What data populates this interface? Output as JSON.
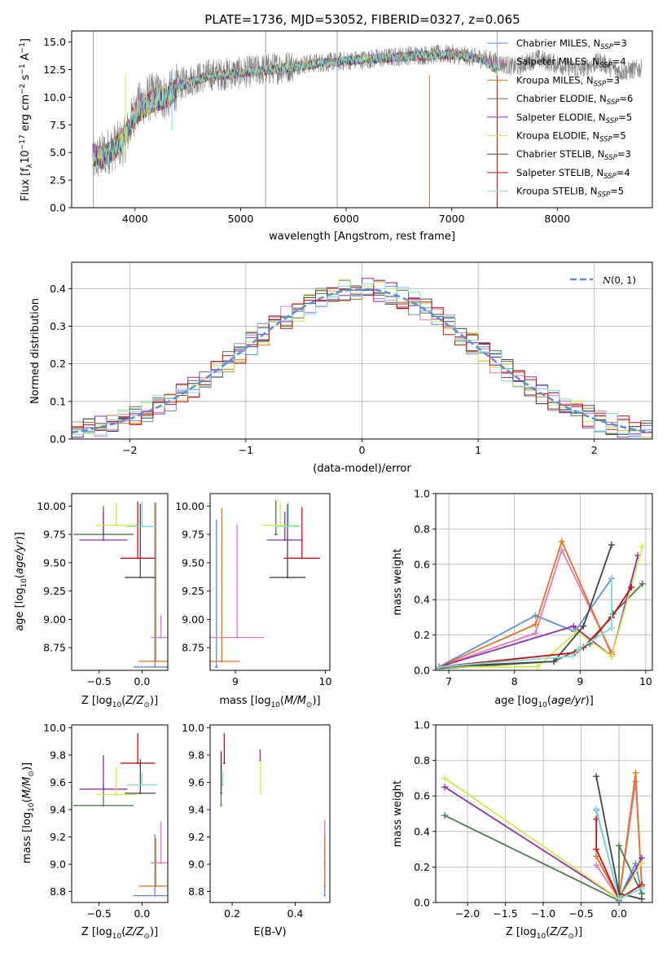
{
  "figure": {
    "title": "PLATE=1736, MJD=53052, FIBERID=0327, z=0.065"
  },
  "models": [
    {
      "name": "Chabrier MILES, N_SSP=3",
      "label_main": "Chabrier MILES, N",
      "label_sub": "SSP",
      "label_end": "=3",
      "color": "#5f8fd6"
    },
    {
      "name": "Salpeter MILES, N_SSP=4",
      "label_main": "Salpeter MILES, N",
      "label_sub": "SSP",
      "label_end": "=4",
      "color": "#e377c2"
    },
    {
      "name": "Kroupa MILES, N_SSP=3",
      "label_main": "Kroupa MILES, N",
      "label_sub": "SSP",
      "label_end": "=3",
      "color": "#e0751f"
    },
    {
      "name": "Chabrier ELODIE, N_SSP=6",
      "label_main": "Chabrier ELODIE, N",
      "label_sub": "SSP",
      "label_end": "=6",
      "color": "#4f7a4f"
    },
    {
      "name": "Salpeter ELODIE, N_SSP=5",
      "label_main": "Salpeter ELODIE, N",
      "label_sub": "SSP",
      "label_end": "=5",
      "color": "#9030b0"
    },
    {
      "name": "Kroupa ELODIE, N_SSP=5",
      "label_main": "Kroupa ELODIE, N",
      "label_sub": "SSP",
      "label_end": "=5",
      "color": "#d4e84a"
    },
    {
      "name": "Chabrier STELIB, N_SSP=3",
      "label_main": "Chabrier STELIB, N",
      "label_sub": "SSP",
      "label_end": "=3",
      "color": "#454545"
    },
    {
      "name": "Salpeter STELIB, N_SSP=4",
      "label_main": "Salpeter STELIB, N",
      "label_sub": "SSP",
      "label_end": "=4",
      "color": "#c41010"
    },
    {
      "name": "Kroupa STELIB, N_SSP=5",
      "label_main": "Kroupa STELIB, N",
      "label_sub": "SSP",
      "label_end": "=5",
      "color": "#80dbe3"
    }
  ],
  "chart_data": [
    {
      "id": "spectrum",
      "type": "line",
      "xlabel": "wavelength [Angstrom, rest frame]",
      "ylabel": "Flux [f_λ 10^-17 erg cm^-2 s^-1 A^-1]",
      "ylabel_parts": [
        "Flux [f",
        "λ",
        "10",
        "−17",
        " erg cm",
        "−2",
        " s",
        "−1",
        " A",
        "−1",
        "]"
      ],
      "xlim": [
        3400,
        8900
      ],
      "ylim": [
        0,
        16
      ],
      "xticks": [
        "4000",
        "5000",
        "6000",
        "7000",
        "8000"
      ],
      "xtick_values": [
        4000,
        5000,
        6000,
        7000,
        8000
      ],
      "yticks": [
        "0.0",
        "2.5",
        "5.0",
        "7.5",
        "10.0",
        "12.5",
        "15.0"
      ],
      "ytick_values": [
        0,
        2.5,
        5,
        7.5,
        10,
        12.5,
        15
      ],
      "data_color": "#808080",
      "data_continuum": {
        "wavelength": [
          3600,
          3700,
          3800,
          3900,
          4000,
          4100,
          4200,
          4300,
          4400,
          4500,
          4700,
          5000,
          5300,
          5600,
          6000,
          6300,
          6600,
          7000,
          7300,
          7600,
          7800,
          8000,
          8200,
          8400,
          8600,
          8800
        ],
        "flux": [
          4.2,
          4.8,
          5.5,
          6.0,
          8.8,
          9.8,
          10.2,
          10.0,
          11.0,
          11.5,
          12.0,
          12.2,
          12.6,
          13.0,
          13.3,
          13.5,
          13.8,
          13.9,
          13.5,
          12.7,
          13.5,
          13.0,
          12.5,
          13.2,
          12.3,
          12.6
        ]
      },
      "sky_spikes": [
        {
          "wavelength": 3605,
          "flux": 16
        },
        {
          "wavelength": 5237,
          "flux": 16
        },
        {
          "wavelength": 5915,
          "flux": 16
        },
        {
          "wavelength": 7430,
          "flux": 16
        }
      ],
      "model_continuum": {
        "wavelength": [
          3600,
          3700,
          3800,
          3900,
          4000,
          4100,
          4200,
          4300,
          4400,
          4500,
          4700,
          5000,
          5300,
          5600,
          6000,
          6300,
          6600,
          7000,
          7300,
          7430
        ],
        "flux": [
          4.8,
          4.5,
          5.3,
          6.2,
          8.5,
          9.2,
          9.8,
          10.0,
          10.8,
          11.3,
          11.9,
          12.2,
          12.5,
          12.9,
          13.3,
          13.5,
          13.7,
          13.9,
          13.4,
          12.5
        ]
      },
      "model_end_wavelength": 7430
    },
    {
      "id": "residual-distribution",
      "type": "line",
      "xlabel": "(data-model)/error",
      "ylabel": "Normed distribution",
      "xlim": [
        -2.5,
        2.5
      ],
      "ylim": [
        0,
        0.47
      ],
      "xticks": [
        "−2",
        "−1",
        "0",
        "1",
        "2"
      ],
      "xtick_values": [
        -2,
        -1,
        0,
        1,
        2
      ],
      "yticks": [
        "0.0",
        "0.1",
        "0.2",
        "0.3",
        "0.4"
      ],
      "ytick_values": [
        0,
        0.1,
        0.2,
        0.3,
        0.4
      ],
      "legend": "N(0,1)",
      "legend_placement": "top-right",
      "gaussian": {
        "mean": 0,
        "sigma": 1,
        "color": "#5f8fd6",
        "style": "dashed"
      },
      "bin_width": 0.1,
      "bin_start": -2.5,
      "hist_spread": 0.03
    },
    {
      "id": "age-vs-z",
      "type": "scatter",
      "xlabel": "Z [log10(Z/Z⊙)]",
      "ylabel": "age [log10(age/yr)]",
      "xlim": [
        -0.82,
        0.3
      ],
      "ylim": [
        8.55,
        10.11
      ],
      "xticks": [
        "−0.5",
        "0.0"
      ],
      "xtick_values": [
        -0.5,
        0
      ],
      "yticks": [
        "8.75",
        "9.00",
        "9.25",
        "9.50",
        "9.75",
        "10.00"
      ],
      "ytick_values": [
        8.75,
        9.0,
        9.25,
        9.5,
        9.75,
        10.0
      ],
      "points": [
        {
          "model": 0,
          "x": 0.15,
          "y": 8.58,
          "xerr": 0.25,
          "yerr": 1.45
        },
        {
          "model": 1,
          "x": 0.22,
          "y": 8.84,
          "xerr": 0.12,
          "yerr": 0.2
        },
        {
          "model": 2,
          "x": 0.16,
          "y": 8.63,
          "xerr": 0.2,
          "yerr": 1.4
        },
        {
          "model": 3,
          "x": -0.45,
          "y": 9.75,
          "xerr": 0.35,
          "yerr": 0.25
        },
        {
          "model": 4,
          "x": -0.45,
          "y": 9.7,
          "xerr": 0.28,
          "yerr": 0.25
        },
        {
          "model": 5,
          "x": -0.3,
          "y": 9.83,
          "xerr": 0.24,
          "yerr": 0.2
        },
        {
          "model": 6,
          "x": -0.02,
          "y": 9.37,
          "xerr": 0.18,
          "yerr": 0.65
        },
        {
          "model": 7,
          "x": -0.05,
          "y": 9.54,
          "xerr": 0.2,
          "yerr": 0.5
        },
        {
          "model": 8,
          "x": 0.0,
          "y": 9.82,
          "xerr": 0.18,
          "yerr": 0.22
        }
      ]
    },
    {
      "id": "age-vs-mass",
      "type": "scatter",
      "xlabel": "mass [log10(M/M⊙)]",
      "ylabel": "",
      "xlim": [
        8.72,
        10.05
      ],
      "ylim": [
        8.55,
        10.11
      ],
      "xticks": [
        "9",
        "10"
      ],
      "xtick_values": [
        9,
        10
      ],
      "yticks": [
        "8.75",
        "9.00",
        "9.25",
        "9.50",
        "9.75",
        "10.00"
      ],
      "ytick_values": [
        8.75,
        9.0,
        9.25,
        9.5,
        9.75,
        10.0
      ],
      "points": [
        {
          "model": 0,
          "x": 8.79,
          "y": 8.58,
          "xerr": 0.02,
          "yerr": 1.3
        },
        {
          "model": 1,
          "x": 9.02,
          "y": 8.84,
          "xerr": 0.3,
          "yerr": 1.0
        },
        {
          "model": 2,
          "x": 8.85,
          "y": 8.63,
          "xerr": 0.2,
          "yerr": 1.35
        },
        {
          "model": 3,
          "x": 9.45,
          "y": 9.75,
          "xerr": 0.02,
          "yerr": 0.3
        },
        {
          "model": 4,
          "x": 9.55,
          "y": 9.7,
          "xerr": 0.2,
          "yerr": 0.25
        },
        {
          "model": 5,
          "x": 9.5,
          "y": 9.83,
          "xerr": 0.2,
          "yerr": 0.2
        },
        {
          "model": 6,
          "x": 9.58,
          "y": 9.37,
          "xerr": 0.2,
          "yerr": 0.65
        },
        {
          "model": 7,
          "x": 9.74,
          "y": 9.54,
          "xerr": 0.2,
          "yerr": 0.45
        },
        {
          "model": 8,
          "x": 9.59,
          "y": 9.82,
          "xerr": 0.15,
          "yerr": 0.22
        }
      ]
    },
    {
      "id": "mass-weight-vs-age",
      "type": "line",
      "xlabel": "age [log10(age/yr)]",
      "ylabel": "mass weight",
      "xlim": [
        6.8,
        10.1
      ],
      "ylim": [
        0,
        1
      ],
      "xticks": [
        "7",
        "8",
        "9",
        "10"
      ],
      "xtick_values": [
        7,
        8,
        9,
        10
      ],
      "yticks": [
        "0.0",
        "0.2",
        "0.4",
        "0.6",
        "0.8",
        "1.0"
      ],
      "ytick_values": [
        0,
        0.2,
        0.4,
        0.6,
        0.8,
        1.0
      ],
      "series": [
        {
          "model": 0,
          "x": [
            6.85,
            8.32,
            8.92,
            9.48
          ],
          "y": [
            0.02,
            0.31,
            0.22,
            0.52
          ]
        },
        {
          "model": 1,
          "x": [
            6.85,
            8.32,
            8.72,
            9.48
          ],
          "y": [
            0.02,
            0.21,
            0.68,
            0.1
          ]
        },
        {
          "model": 2,
          "x": [
            6.85,
            8.32,
            8.72,
            9.48
          ],
          "y": [
            0.02,
            0.26,
            0.73,
            0.09
          ]
        },
        {
          "model": 3,
          "x": [
            6.85,
            8.6,
            9.15,
            9.5,
            9.95
          ],
          "y": [
            0.01,
            0.05,
            0.15,
            0.32,
            0.49
          ]
        },
        {
          "model": 4,
          "x": [
            6.85,
            8.9,
            9.48,
            9.88
          ],
          "y": [
            0.02,
            0.25,
            0.08,
            0.65
          ]
        },
        {
          "model": 5,
          "x": [
            6.85,
            8.35,
            8.95,
            9.48,
            9.95
          ],
          "y": [
            0.02,
            0.02,
            0.22,
            0.08,
            0.7
          ]
        },
        {
          "model": 6,
          "x": [
            6.85,
            8.6,
            9.05,
            9.48
          ],
          "y": [
            0.02,
            0.05,
            0.25,
            0.71
          ]
        },
        {
          "model": 7,
          "x": [
            6.85,
            8.92,
            9.05,
            9.48,
            9.78
          ],
          "y": [
            0.02,
            0.1,
            0.13,
            0.3,
            0.47
          ]
        },
        {
          "model": 8,
          "x": [
            6.85,
            8.88,
            8.98,
            9.48
          ],
          "y": [
            0.02,
            0.08,
            0.12,
            0.24
          ]
        }
      ],
      "vertical_errors": [
        {
          "model": 8,
          "x": 9.48,
          "y0": 0.24,
          "y1": 0.53
        }
      ]
    },
    {
      "id": "mass-vs-z",
      "type": "scatter",
      "xlabel": "Z [log10(Z/Z⊙)]",
      "ylabel": "mass [log10(M/M⊙)]",
      "xlim": [
        -0.82,
        0.3
      ],
      "ylim": [
        8.72,
        10.02
      ],
      "xticks": [
        "−0.5",
        "0.0"
      ],
      "xtick_values": [
        -0.5,
        0
      ],
      "yticks": [
        "8.8",
        "9.0",
        "9.2",
        "9.4",
        "9.6",
        "9.8",
        "10.0"
      ],
      "ytick_values": [
        8.8,
        9.0,
        9.2,
        9.4,
        9.6,
        9.8,
        10.0
      ],
      "points": [
        {
          "model": 0,
          "x": 0.15,
          "y": 8.77,
          "xerr": 0.25,
          "yerr": 0.45
        },
        {
          "model": 1,
          "x": 0.22,
          "y": 9.01,
          "xerr": 0.12,
          "yerr": 0.3
        },
        {
          "model": 2,
          "x": 0.16,
          "y": 8.84,
          "xerr": 0.2,
          "yerr": 0.35
        },
        {
          "model": 3,
          "x": -0.45,
          "y": 9.43,
          "xerr": 0.35,
          "yerr": 0.15
        },
        {
          "model": 4,
          "x": -0.45,
          "y": 9.55,
          "xerr": 0.28,
          "yerr": 0.25
        },
        {
          "model": 5,
          "x": -0.3,
          "y": 9.51,
          "xerr": 0.24,
          "yerr": 0.2
        },
        {
          "model": 6,
          "x": -0.02,
          "y": 9.52,
          "xerr": 0.18,
          "yerr": 0.25
        },
        {
          "model": 7,
          "x": -0.05,
          "y": 9.74,
          "xerr": 0.2,
          "yerr": 0.22
        },
        {
          "model": 8,
          "x": 0.0,
          "y": 9.58,
          "xerr": 0.18,
          "yerr": 0.1
        }
      ]
    },
    {
      "id": "mass-vs-ebv",
      "type": "scatter",
      "xlabel": "E(B-V)",
      "ylabel": "",
      "xlim": [
        0.13,
        0.51
      ],
      "ylim": [
        8.72,
        10.02
      ],
      "xticks": [
        "0.2",
        "0.4"
      ],
      "xtick_values": [
        0.2,
        0.4
      ],
      "yticks": [
        "8.8",
        "9.0",
        "9.2",
        "9.4",
        "9.6",
        "9.8",
        "10.0"
      ],
      "ytick_values": [
        8.8,
        9.0,
        9.2,
        9.4,
        9.6,
        9.8,
        10.0
      ],
      "points": [
        {
          "model": 0,
          "x": 0.494,
          "y": 8.77,
          "yerr": 0.45
        },
        {
          "model": 1,
          "x": 0.494,
          "y": 9.01,
          "yerr": 0.32
        },
        {
          "model": 2,
          "x": 0.494,
          "y": 8.84,
          "yerr": 0.37
        },
        {
          "model": 3,
          "x": 0.165,
          "y": 9.43,
          "yerr": 0.4
        },
        {
          "model": 4,
          "x": 0.289,
          "y": 9.76,
          "yerr": 0.08
        },
        {
          "model": 5,
          "x": 0.29,
          "y": 9.51,
          "yerr": 0.25
        },
        {
          "model": 6,
          "x": 0.165,
          "y": 9.52,
          "yerr": 0.3
        },
        {
          "model": 7,
          "x": 0.175,
          "y": 9.74,
          "yerr": 0.22
        },
        {
          "model": 8,
          "x": 0.17,
          "y": 9.58,
          "yerr": 0.1
        }
      ]
    },
    {
      "id": "mass-weight-vs-z",
      "type": "line",
      "xlabel": "Z [log10(Z/Z⊙)]",
      "ylabel": "mass weight",
      "xlim": [
        -2.42,
        0.44
      ],
      "ylim": [
        0,
        1
      ],
      "xticks": [
        "−2.0",
        "−1.5",
        "−1.0",
        "−0.5",
        "0.0"
      ],
      "xtick_values": [
        -2.0,
        -1.5,
        -1.0,
        -0.5,
        0.0
      ],
      "yticks": [
        "0.0",
        "0.2",
        "0.4",
        "0.6",
        "0.8",
        "1.0"
      ],
      "ytick_values": [
        0,
        0.2,
        0.4,
        0.6,
        0.8,
        1.0
      ],
      "series": [
        {
          "model": 0,
          "x": [
            -0.3,
            0.0,
            0.22,
            0.3
          ],
          "y": [
            0.52,
            0.02,
            0.22,
            0.05
          ]
        },
        {
          "model": 1,
          "x": [
            -0.3,
            0.0,
            0.22,
            0.3
          ],
          "y": [
            0.21,
            0.02,
            0.68,
            0.1
          ]
        },
        {
          "model": 2,
          "x": [
            -0.3,
            0.0,
            0.22,
            0.3
          ],
          "y": [
            0.26,
            0.02,
            0.73,
            0.09
          ]
        },
        {
          "model": 3,
          "x": [
            -2.3,
            0.0,
            0.0,
            0.3
          ],
          "y": [
            0.49,
            0.01,
            0.32,
            0.05
          ]
        },
        {
          "model": 4,
          "x": [
            -2.3,
            0.0,
            0.3
          ],
          "y": [
            0.65,
            0.02,
            0.25
          ]
        },
        {
          "model": 5,
          "x": [
            -2.3,
            0.0,
            0.3
          ],
          "y": [
            0.7,
            0.02,
            0.22
          ]
        },
        {
          "model": 6,
          "x": [
            -0.3,
            0.0,
            0.3
          ],
          "y": [
            0.71,
            0.05,
            0.02
          ]
        },
        {
          "model": 7,
          "x": [
            -0.3,
            -0.3,
            0.0,
            0.3
          ],
          "y": [
            0.47,
            0.3,
            0.02,
            0.1
          ]
        },
        {
          "model": 8,
          "x": [
            -0.3,
            0.0,
            0.3
          ],
          "y": [
            0.53,
            0.02,
            0.08
          ]
        }
      ]
    }
  ]
}
